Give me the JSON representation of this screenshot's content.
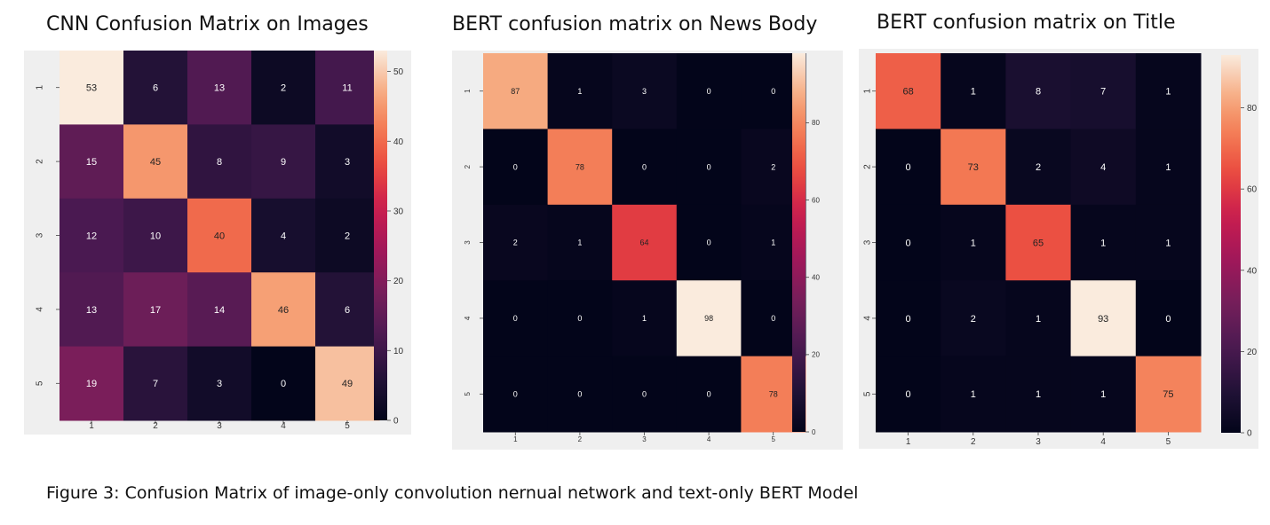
{
  "caption": "Figure 3: Confusion Matrix of image-only convolution nernual network and text-only BERT Model",
  "chart_data": [
    {
      "type": "heatmap",
      "title": "CNN Confusion Matrix on Images",
      "x_categories": [
        "1",
        "2",
        "3",
        "4",
        "5"
      ],
      "y_categories": [
        "1",
        "2",
        "3",
        "4",
        "5"
      ],
      "values": [
        [
          53,
          6,
          13,
          2,
          11
        ],
        [
          15,
          45,
          8,
          9,
          3
        ],
        [
          12,
          10,
          40,
          4,
          2
        ],
        [
          13,
          17,
          14,
          46,
          6
        ],
        [
          19,
          7,
          3,
          0,
          49
        ]
      ],
      "vmin": 0,
      "vmax": 53,
      "colorbar_ticks": [
        0,
        10,
        20,
        30,
        40,
        50
      ],
      "colormap": "rocket"
    },
    {
      "type": "heatmap",
      "title": "BERT confusion matrix on News Body",
      "x_categories": [
        "1",
        "2",
        "3",
        "4",
        "5"
      ],
      "y_categories": [
        "1",
        "2",
        "3",
        "4",
        "5"
      ],
      "values": [
        [
          87,
          1,
          3,
          0,
          0
        ],
        [
          0,
          78,
          0,
          0,
          2
        ],
        [
          2,
          1,
          64,
          0,
          1
        ],
        [
          0,
          0,
          1,
          98,
          0
        ],
        [
          0,
          0,
          0,
          0,
          78
        ]
      ],
      "vmin": 0,
      "vmax": 98,
      "colorbar_ticks": [
        0,
        20,
        40,
        60,
        80
      ],
      "colormap": "rocket"
    },
    {
      "type": "heatmap",
      "title": "BERT confusion matrix on Title",
      "x_categories": [
        "1",
        "2",
        "3",
        "4",
        "5"
      ],
      "y_categories": [
        "1",
        "2",
        "3",
        "4",
        "5"
      ],
      "values": [
        [
          68,
          1,
          8,
          7,
          1
        ],
        [
          0,
          73,
          2,
          4,
          1
        ],
        [
          0,
          1,
          65,
          1,
          1
        ],
        [
          0,
          2,
          1,
          93,
          0
        ],
        [
          0,
          1,
          1,
          1,
          75
        ]
      ],
      "vmin": 0,
      "vmax": 93,
      "colorbar_ticks": [
        0,
        20,
        40,
        60,
        80
      ],
      "colormap": "rocket"
    }
  ]
}
